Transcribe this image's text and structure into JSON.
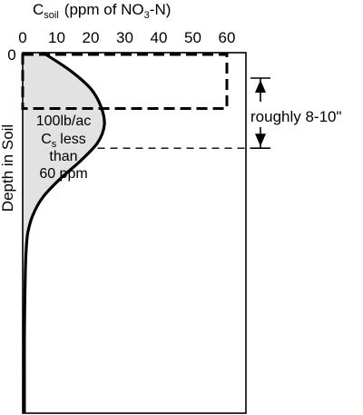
{
  "chart_data": {
    "type": "line",
    "xlabel_main": "C",
    "xlabel_sub": "soil",
    "xlabel_rest": "(ppm of NO",
    "xlabel_sub2": "3",
    "xlabel_tail": "-N)",
    "ylabel": "Depth in Soil",
    "xlim": [
      0,
      60
    ],
    "x_ticks": [
      "0",
      "10",
      "20",
      "30",
      "40",
      "50",
      "60"
    ],
    "y_tick_zero": "0",
    "depth_profile": {
      "relative_depth": [
        0,
        0.05,
        0.1,
        0.15,
        0.2,
        0.25,
        0.3,
        0.35,
        0.4,
        0.45,
        0.5,
        0.55,
        0.6,
        0.7,
        0.8,
        0.9,
        1.0
      ],
      "concentration": [
        6,
        14,
        20,
        23,
        24,
        22,
        17,
        11,
        6,
        3,
        1.5,
        1,
        0.8,
        0.6,
        0.5,
        0.5,
        0.5
      ]
    },
    "reference_box": {
      "concentration": 60,
      "depth_fraction": 0.155
    },
    "dashed_marker_depth_fraction": 0.265,
    "annotations": {
      "shaded_line1": "100lb/ac",
      "shaded_c": "C",
      "shaded_c_sub": "s",
      "shaded_line2_rest": "less",
      "shaded_line3": "than",
      "shaded_line4": "60 ppm",
      "bracket_label": "roughly 8-10\""
    }
  }
}
